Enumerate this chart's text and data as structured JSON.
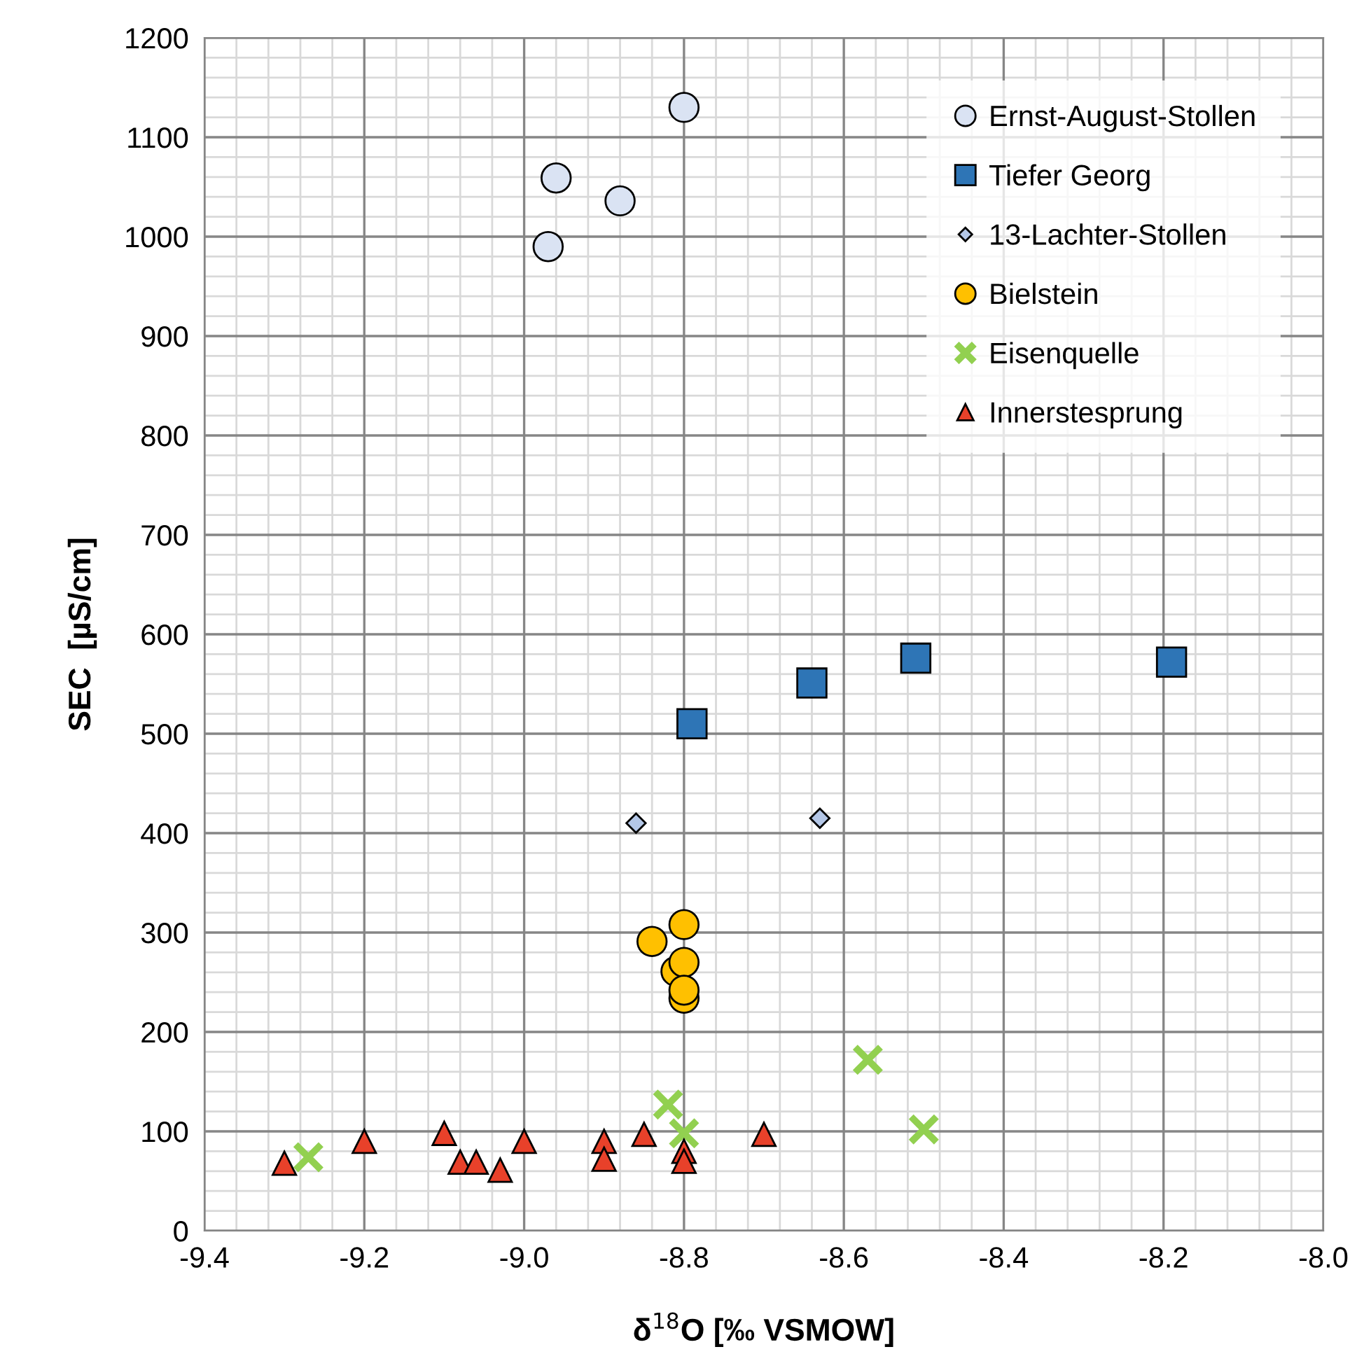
{
  "chart_data": {
    "type": "scatter",
    "xlabel": "δ$^{18}$O [‰ VSMOW]",
    "ylabel": "SEC  [µS/cm]",
    "xlim": [
      -9.4,
      -8.0
    ],
    "xticks": [
      {
        "value": -9.4,
        "label": "-9.4"
      },
      {
        "value": -9.2,
        "label": "-9.2"
      },
      {
        "value": -9.0,
        "label": "-9.0"
      },
      {
        "value": -8.8,
        "label": "-8.8"
      },
      {
        "value": -8.6,
        "label": "-8.6"
      },
      {
        "value": -8.4,
        "label": "-8.4"
      },
      {
        "value": -8.2,
        "label": "-8.2"
      },
      {
        "value": -8.0,
        "label": "-8.0"
      }
    ],
    "ylim": [
      0,
      1200
    ],
    "yticks": [
      0,
      100,
      200,
      300,
      400,
      500,
      600,
      700,
      800,
      900,
      1000,
      1100,
      1200
    ],
    "grid": true,
    "legend": "top right",
    "series": [
      {
        "name": "Ernst-August-Stollen",
        "color": "#dae3f3",
        "marker": "circle",
        "x": [
          -8.8,
          -8.96,
          -8.88,
          -8.97
        ],
        "values": [
          1130,
          1059,
          1036,
          990
        ]
      },
      {
        "name": "Tiefer Georg",
        "color": "#2e75b6",
        "marker": "square",
        "x": [
          -8.79,
          -8.64,
          -8.51,
          -8.19
        ],
        "values": [
          510,
          551,
          576,
          572
        ]
      },
      {
        "name": "13-Lachter-Stollen",
        "color": "#b4c7e7",
        "marker": "diamond",
        "x": [
          -8.86,
          -8.63
        ],
        "values": [
          410,
          415
        ]
      },
      {
        "name": "Bielstein",
        "color": "#ffc000",
        "marker": "circle",
        "x": [
          -8.8,
          -8.84,
          -8.81,
          -8.8,
          -8.8,
          -8.8
        ],
        "values": [
          308,
          291,
          261,
          270,
          234,
          242
        ]
      },
      {
        "name": "Eisenquelle",
        "color": "#92d050",
        "marker": "cross",
        "x": [
          -9.27,
          -8.82,
          -8.8,
          -8.57,
          -8.5
        ],
        "values": [
          74,
          127,
          98,
          172,
          102
        ]
      },
      {
        "name": "Innerstesprung",
        "color": "#e8412a",
        "marker": "triangle",
        "x": [
          -9.3,
          -9.2,
          -9.1,
          -9.08,
          -9.06,
          -9.03,
          -9.0,
          -8.9,
          -8.9,
          -8.85,
          -8.8,
          -8.8,
          -8.7
        ],
        "values": [
          68,
          90,
          98,
          69,
          69,
          61,
          90,
          90,
          72,
          97,
          80,
          70,
          97
        ]
      }
    ]
  }
}
